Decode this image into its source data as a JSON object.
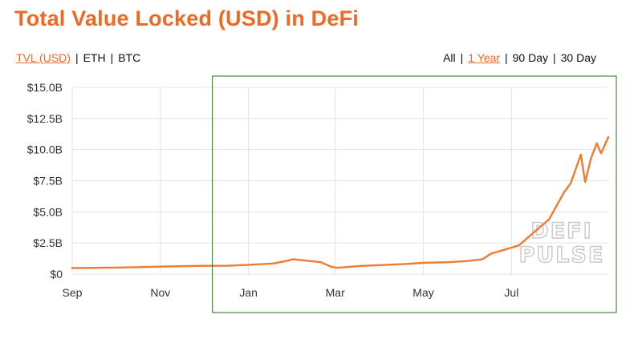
{
  "page": {
    "title": "Total Value Locked (USD) in DeFi"
  },
  "metric_toggles": [
    {
      "label": "TVL (USD)",
      "active": true
    },
    {
      "label": "ETH",
      "active": false
    },
    {
      "label": "BTC",
      "active": false
    }
  ],
  "range_toggles": [
    {
      "label": "All",
      "active": false
    },
    {
      "label": "1 Year",
      "active": true
    },
    {
      "label": "90 Day",
      "active": false
    },
    {
      "label": "30 Day",
      "active": false
    }
  ],
  "watermark": {
    "line1": "DEFI",
    "line2": "PULSE"
  },
  "colors": {
    "accent": "#ee6a24",
    "line": "#f07a30",
    "grid": "#e3e3e3",
    "selection_box": "#2d6a1e",
    "watermark": "#c9c9c9"
  },
  "chart_data": {
    "type": "line",
    "title": "Total Value Locked (USD) in DeFi",
    "xlabel": "",
    "ylabel": "",
    "x_ticks": [
      "Nov",
      "Jan",
      "Mar",
      "May",
      "Jul",
      "Sep"
    ],
    "y_ticks": [
      "$0",
      "$2.5B",
      "$5.0B",
      "$7.5B",
      "$10.0B",
      "$12.5B",
      "$15.0B"
    ],
    "ylim": [
      0,
      15
    ],
    "y_unit": "USD billions",
    "xlim": [
      "2019-09-15",
      "2020-09-20"
    ],
    "grid": true,
    "legend": "none",
    "selection": [
      "2019-12-21",
      "2020-09-20"
    ],
    "series": [
      {
        "values": [
          [
            "2019-09-15",
            0.48
          ],
          [
            "2019-10-01",
            0.5
          ],
          [
            "2019-10-15",
            0.52
          ],
          [
            "2019-11-01",
            0.56
          ],
          [
            "2019-11-15",
            0.6
          ],
          [
            "2019-12-01",
            0.64
          ],
          [
            "2019-12-15",
            0.66
          ],
          [
            "2020-01-01",
            0.67
          ],
          [
            "2020-01-15",
            0.75
          ],
          [
            "2020-02-01",
            0.85
          ],
          [
            "2020-02-10",
            1.05
          ],
          [
            "2020-02-15",
            1.2
          ],
          [
            "2020-02-22",
            1.1
          ],
          [
            "2020-03-05",
            0.95
          ],
          [
            "2020-03-12",
            0.6
          ],
          [
            "2020-03-16",
            0.5
          ],
          [
            "2020-04-01",
            0.65
          ],
          [
            "2020-04-15",
            0.72
          ],
          [
            "2020-05-01",
            0.8
          ],
          [
            "2020-05-15",
            0.9
          ],
          [
            "2020-06-01",
            0.95
          ],
          [
            "2020-06-15",
            1.05
          ],
          [
            "2020-06-25",
            1.2
          ],
          [
            "2020-07-01",
            1.65
          ],
          [
            "2020-07-10",
            1.95
          ],
          [
            "2020-07-20",
            2.3
          ],
          [
            "2020-08-01",
            3.5
          ],
          [
            "2020-08-10",
            4.4
          ],
          [
            "2020-08-20",
            6.5
          ],
          [
            "2020-08-25",
            7.3
          ],
          [
            "2020-09-01",
            9.6
          ],
          [
            "2020-09-04",
            7.4
          ],
          [
            "2020-09-08",
            9.3
          ],
          [
            "2020-09-12",
            10.5
          ],
          [
            "2020-09-15",
            9.7
          ],
          [
            "2020-09-20",
            11.0
          ]
        ]
      }
    ]
  }
}
